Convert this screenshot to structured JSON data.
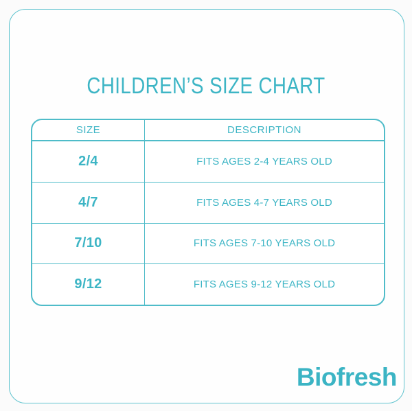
{
  "colors": {
    "accent_text": "#3db5c5",
    "frame_border": "#5fc3ce",
    "table_border": "#4fbcc9",
    "background": "#fbfbfb"
  },
  "title": "CHILDREN’S SIZE CHART",
  "size_chart": {
    "columns": {
      "size": "SIZE",
      "description": "DESCRIPTION"
    },
    "rows": [
      {
        "size": "2/4",
        "description": "FITS AGES 2-4 YEARS OLD"
      },
      {
        "size": "4/7",
        "description": "FITS AGES 4-7 YEARS OLD"
      },
      {
        "size": "7/10",
        "description": "FITS AGES 7-10 YEARS OLD"
      },
      {
        "size": "9/12",
        "description": "FITS AGES 9-12 YEARS OLD"
      }
    ]
  },
  "brand": {
    "logo_text": "Biofresh"
  },
  "chart_data": {
    "type": "table",
    "title": "CHILDREN’S SIZE CHART",
    "columns": [
      "SIZE",
      "DESCRIPTION"
    ],
    "rows": [
      [
        "2/4",
        "FITS AGES 2-4 YEARS OLD"
      ],
      [
        "4/7",
        "FITS AGES 4-7 YEARS OLD"
      ],
      [
        "7/10",
        "FITS AGES 7-10 YEARS OLD"
      ],
      [
        "9/12",
        "FITS AGES 9-12 YEARS OLD"
      ]
    ]
  }
}
